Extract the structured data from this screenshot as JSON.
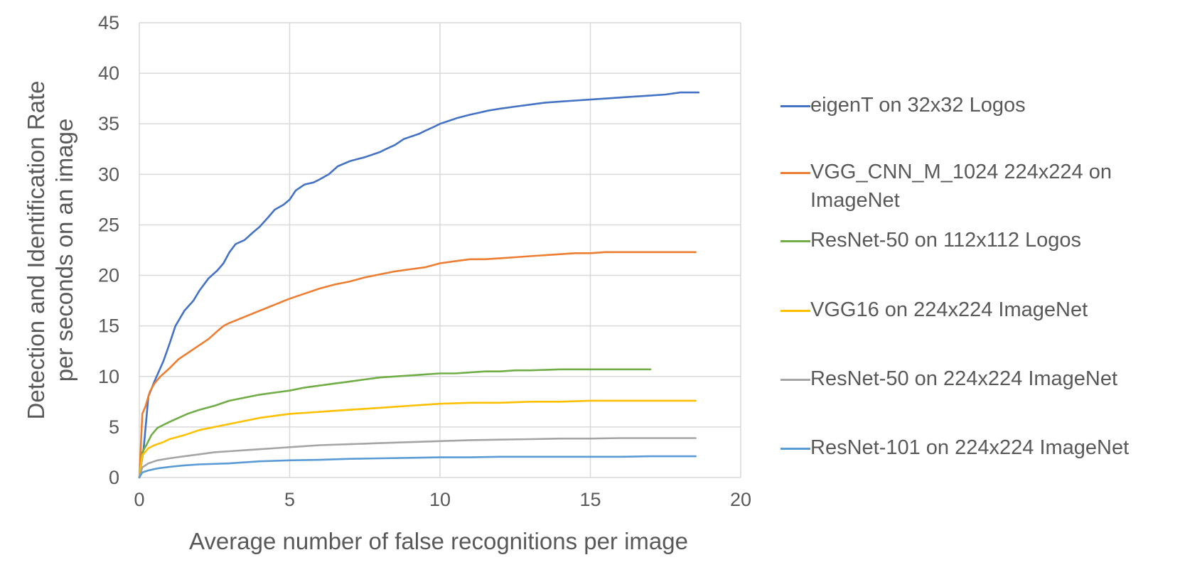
{
  "chart_data": {
    "type": "line",
    "title": "",
    "xlabel": "Average number of false recognitions per image",
    "ylabel_lines": [
      "Detection and Identification Rate",
      "per seconds on an image"
    ],
    "xlim": [
      0,
      20
    ],
    "ylim": [
      0,
      45
    ],
    "x_ticks": [
      "0",
      "5",
      "10",
      "15",
      "20"
    ],
    "y_ticks": [
      "0",
      "5",
      "10",
      "15",
      "20",
      "25",
      "30",
      "35",
      "40",
      "45"
    ],
    "grid": true,
    "legend_position": "right",
    "series": [
      {
        "name": "eigenT on 32x32 Logos",
        "color": "#4472c4",
        "points": [
          [
            0,
            0
          ],
          [
            0.15,
            3
          ],
          [
            0.3,
            8
          ],
          [
            0.5,
            9.5
          ],
          [
            0.8,
            11.5
          ],
          [
            1.0,
            13.2
          ],
          [
            1.2,
            15
          ],
          [
            1.5,
            16.5
          ],
          [
            1.8,
            17.5
          ],
          [
            2.0,
            18.5
          ],
          [
            2.3,
            19.7
          ],
          [
            2.6,
            20.5
          ],
          [
            2.8,
            21.2
          ],
          [
            3.0,
            22.3
          ],
          [
            3.2,
            23.1
          ],
          [
            3.5,
            23.5
          ],
          [
            3.8,
            24.3
          ],
          [
            4.0,
            24.8
          ],
          [
            4.3,
            25.8
          ],
          [
            4.5,
            26.5
          ],
          [
            4.8,
            27
          ],
          [
            5.0,
            27.5
          ],
          [
            5.2,
            28.4
          ],
          [
            5.5,
            29
          ],
          [
            5.8,
            29.2
          ],
          [
            6.0,
            29.5
          ],
          [
            6.3,
            30
          ],
          [
            6.6,
            30.8
          ],
          [
            7.0,
            31.3
          ],
          [
            7.5,
            31.7
          ],
          [
            8.0,
            32.2
          ],
          [
            8.2,
            32.5
          ],
          [
            8.5,
            32.9
          ],
          [
            8.8,
            33.5
          ],
          [
            9.0,
            33.7
          ],
          [
            9.3,
            34
          ],
          [
            9.5,
            34.3
          ],
          [
            9.8,
            34.7
          ],
          [
            10.0,
            35
          ],
          [
            10.3,
            35.3
          ],
          [
            10.6,
            35.6
          ],
          [
            11.0,
            35.9
          ],
          [
            11.3,
            36.1
          ],
          [
            11.6,
            36.3
          ],
          [
            12.0,
            36.5
          ],
          [
            12.5,
            36.7
          ],
          [
            13.0,
            36.9
          ],
          [
            13.5,
            37.1
          ],
          [
            14.0,
            37.2
          ],
          [
            14.5,
            37.3
          ],
          [
            15.0,
            37.4
          ],
          [
            15.5,
            37.5
          ],
          [
            16.0,
            37.6
          ],
          [
            16.5,
            37.7
          ],
          [
            17.0,
            37.8
          ],
          [
            17.5,
            37.9
          ],
          [
            18.0,
            38.1
          ],
          [
            18.6,
            38.1
          ]
        ]
      },
      {
        "name": "VGG_CNN_M_1024 224x224 on ImageNet",
        "color": "#ed7d31",
        "points": [
          [
            0,
            0
          ],
          [
            0.1,
            6.3
          ],
          [
            0.2,
            7
          ],
          [
            0.35,
            8.5
          ],
          [
            0.5,
            9.3
          ],
          [
            0.7,
            10
          ],
          [
            1.0,
            10.8
          ],
          [
            1.3,
            11.7
          ],
          [
            1.6,
            12.3
          ],
          [
            2.0,
            13.1
          ],
          [
            2.3,
            13.7
          ],
          [
            2.6,
            14.5
          ],
          [
            2.8,
            15
          ],
          [
            3.0,
            15.3
          ],
          [
            3.5,
            15.9
          ],
          [
            4.0,
            16.5
          ],
          [
            4.5,
            17.1
          ],
          [
            5.0,
            17.7
          ],
          [
            5.5,
            18.2
          ],
          [
            6.0,
            18.7
          ],
          [
            6.5,
            19.1
          ],
          [
            7.0,
            19.4
          ],
          [
            7.5,
            19.8
          ],
          [
            8.0,
            20.1
          ],
          [
            8.5,
            20.4
          ],
          [
            9.0,
            20.6
          ],
          [
            9.5,
            20.8
          ],
          [
            10.0,
            21.2
          ],
          [
            10.5,
            21.4
          ],
          [
            11.0,
            21.6
          ],
          [
            11.5,
            21.6
          ],
          [
            12.0,
            21.7
          ],
          [
            12.5,
            21.8
          ],
          [
            13.0,
            21.9
          ],
          [
            13.5,
            22
          ],
          [
            14.0,
            22.1
          ],
          [
            14.5,
            22.2
          ],
          [
            15.0,
            22.2
          ],
          [
            15.5,
            22.3
          ],
          [
            16.0,
            22.3
          ],
          [
            17.0,
            22.3
          ],
          [
            18.5,
            22.3
          ]
        ]
      },
      {
        "name": "ResNet-50 on 112x112 Logos",
        "color": "#70ad47",
        "points": [
          [
            0,
            0
          ],
          [
            0.1,
            2.5
          ],
          [
            0.25,
            3.3
          ],
          [
            0.4,
            4.2
          ],
          [
            0.6,
            4.9
          ],
          [
            0.8,
            5.2
          ],
          [
            1.0,
            5.5
          ],
          [
            1.3,
            5.9
          ],
          [
            1.6,
            6.3
          ],
          [
            2.0,
            6.7
          ],
          [
            2.5,
            7.1
          ],
          [
            3.0,
            7.6
          ],
          [
            3.5,
            7.9
          ],
          [
            4.0,
            8.2
          ],
          [
            4.5,
            8.4
          ],
          [
            5.0,
            8.6
          ],
          [
            5.5,
            8.9
          ],
          [
            6.0,
            9.1
          ],
          [
            6.5,
            9.3
          ],
          [
            7.0,
            9.5
          ],
          [
            7.5,
            9.7
          ],
          [
            8.0,
            9.9
          ],
          [
            8.5,
            10
          ],
          [
            9.0,
            10.1
          ],
          [
            9.5,
            10.2
          ],
          [
            10.0,
            10.3
          ],
          [
            10.5,
            10.3
          ],
          [
            11.0,
            10.4
          ],
          [
            11.5,
            10.5
          ],
          [
            12.0,
            10.5
          ],
          [
            12.5,
            10.6
          ],
          [
            13.0,
            10.6
          ],
          [
            14.0,
            10.7
          ],
          [
            15.0,
            10.7
          ],
          [
            16.0,
            10.7
          ],
          [
            17.0,
            10.7
          ]
        ]
      },
      {
        "name": "VGG16 on 224x224 ImageNet",
        "color": "#ffc000",
        "points": [
          [
            0,
            0
          ],
          [
            0.1,
            2.2
          ],
          [
            0.3,
            2.9
          ],
          [
            0.5,
            3.2
          ],
          [
            0.8,
            3.5
          ],
          [
            1.0,
            3.8
          ],
          [
            1.5,
            4.2
          ],
          [
            2.0,
            4.7
          ],
          [
            2.5,
            5
          ],
          [
            3.0,
            5.3
          ],
          [
            3.5,
            5.6
          ],
          [
            4.0,
            5.9
          ],
          [
            4.5,
            6.1
          ],
          [
            5.0,
            6.3
          ],
          [
            5.5,
            6.4
          ],
          [
            6.0,
            6.5
          ],
          [
            6.5,
            6.6
          ],
          [
            7.0,
            6.7
          ],
          [
            7.5,
            6.8
          ],
          [
            8.0,
            6.9
          ],
          [
            8.5,
            7
          ],
          [
            9.0,
            7.1
          ],
          [
            9.5,
            7.2
          ],
          [
            10.0,
            7.3
          ],
          [
            11.0,
            7.4
          ],
          [
            12.0,
            7.4
          ],
          [
            13.0,
            7.5
          ],
          [
            14.0,
            7.5
          ],
          [
            15.0,
            7.6
          ],
          [
            16.0,
            7.6
          ],
          [
            17.0,
            7.6
          ],
          [
            18.5,
            7.6
          ]
        ]
      },
      {
        "name": "ResNet-50 on 224x224 ImageNet",
        "color": "#a5a5a5",
        "points": [
          [
            0,
            0
          ],
          [
            0.1,
            1
          ],
          [
            0.3,
            1.4
          ],
          [
            0.6,
            1.7
          ],
          [
            1.0,
            1.9
          ],
          [
            1.5,
            2.1
          ],
          [
            2.0,
            2.3
          ],
          [
            2.5,
            2.5
          ],
          [
            3.0,
            2.6
          ],
          [
            3.5,
            2.7
          ],
          [
            4.0,
            2.8
          ],
          [
            5.0,
            3
          ],
          [
            6.0,
            3.2
          ],
          [
            7.0,
            3.3
          ],
          [
            8.0,
            3.4
          ],
          [
            9.0,
            3.5
          ],
          [
            10.0,
            3.6
          ],
          [
            11.0,
            3.7
          ],
          [
            12.0,
            3.75
          ],
          [
            13.0,
            3.8
          ],
          [
            14.0,
            3.85
          ],
          [
            15.0,
            3.85
          ],
          [
            16.0,
            3.9
          ],
          [
            17.0,
            3.9
          ],
          [
            18.5,
            3.9
          ]
        ]
      },
      {
        "name": "ResNet-101 on 224x224 ImageNet",
        "color": "#5b9bd5",
        "points": [
          [
            0,
            0
          ],
          [
            0.1,
            0.5
          ],
          [
            0.3,
            0.7
          ],
          [
            0.6,
            0.9
          ],
          [
            1.0,
            1.05
          ],
          [
            1.5,
            1.2
          ],
          [
            2.0,
            1.3
          ],
          [
            3.0,
            1.4
          ],
          [
            4.0,
            1.6
          ],
          [
            5.0,
            1.7
          ],
          [
            6.0,
            1.75
          ],
          [
            7.0,
            1.85
          ],
          [
            8.0,
            1.9
          ],
          [
            9.0,
            1.95
          ],
          [
            10.0,
            2
          ],
          [
            11.0,
            2
          ],
          [
            12.0,
            2.05
          ],
          [
            13.0,
            2.05
          ],
          [
            14.0,
            2.05
          ],
          [
            15.0,
            2.05
          ],
          [
            16.0,
            2.05
          ],
          [
            17.0,
            2.1
          ],
          [
            18.5,
            2.1
          ]
        ]
      }
    ]
  }
}
